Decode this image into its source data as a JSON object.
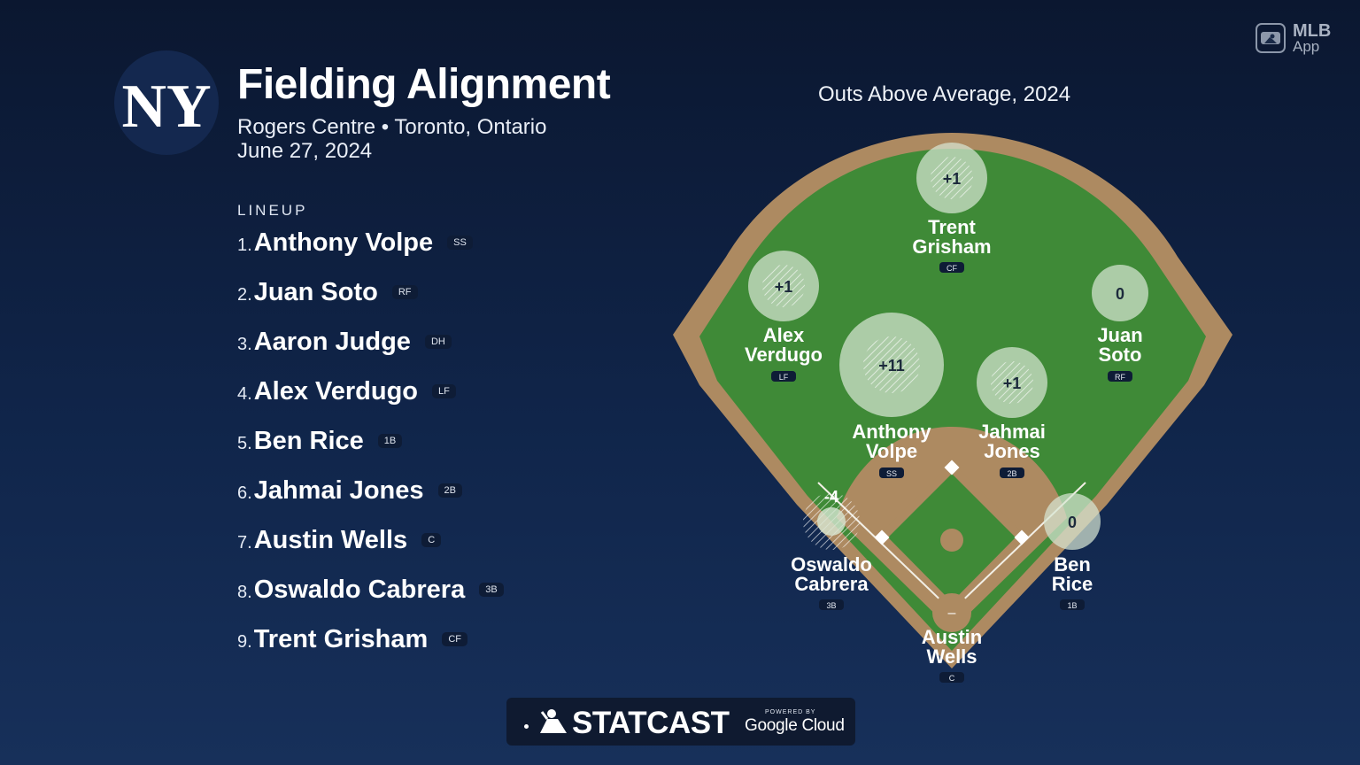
{
  "team_logo_text": "NY",
  "header": {
    "title": "Fielding Alignment",
    "venue": "Rogers Centre • Toronto, Ontario",
    "date": "June 27, 2024"
  },
  "lineup": {
    "heading": "LINEUP",
    "players": [
      {
        "num": "1.",
        "name": "Anthony Volpe",
        "pos": "SS"
      },
      {
        "num": "2.",
        "name": "Juan Soto",
        "pos": "RF"
      },
      {
        "num": "3.",
        "name": "Aaron Judge",
        "pos": "DH"
      },
      {
        "num": "4.",
        "name": "Alex Verdugo",
        "pos": "LF"
      },
      {
        "num": "5.",
        "name": "Ben Rice",
        "pos": "1B"
      },
      {
        "num": "6.",
        "name": "Jahmai Jones",
        "pos": "2B"
      },
      {
        "num": "7.",
        "name": "Austin Wells",
        "pos": "C"
      },
      {
        "num": "8.",
        "name": "Oswaldo Cabrera",
        "pos": "3B"
      },
      {
        "num": "9.",
        "name": "Trent Grisham",
        "pos": "CF"
      }
    ]
  },
  "field": {
    "title": "Outs Above Average, 2024",
    "players": [
      {
        "first": "Trent",
        "last": "Grisham",
        "pos": "CF",
        "oaa": "+1"
      },
      {
        "first": "Alex",
        "last": "Verdugo",
        "pos": "LF",
        "oaa": "+1"
      },
      {
        "first": "Juan",
        "last": "Soto",
        "pos": "RF",
        "oaa": "0"
      },
      {
        "first": "Anthony",
        "last": "Volpe",
        "pos": "SS",
        "oaa": "+11"
      },
      {
        "first": "Jahmai",
        "last": "Jones",
        "pos": "2B",
        "oaa": "+1"
      },
      {
        "first": "Oswaldo",
        "last": "Cabrera",
        "pos": "3B",
        "oaa": "-4"
      },
      {
        "first": "Ben",
        "last": "Rice",
        "pos": "1B",
        "oaa": "0"
      },
      {
        "first": "Austin",
        "last": "Wells",
        "pos": "C",
        "oaa": "–"
      }
    ]
  },
  "brand": {
    "mlb_line1": "MLB",
    "mlb_line2": "App",
    "statcast": "STATCAST",
    "powered_by": "POWERED BY",
    "google_cloud": "Google Cloud"
  },
  "colors": {
    "background": "#0b1730",
    "grass": "#3f8a37",
    "dirt": "#ad8a61",
    "bubble": "#d7e6d2"
  }
}
